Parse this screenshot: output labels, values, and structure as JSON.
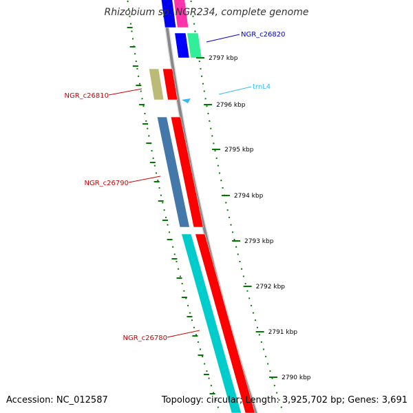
{
  "title": "Rhizobium sp. NGR234, complete genome",
  "footer": {
    "accession": "Accession: NC_012587",
    "summary": "Topology: circular; Length: 3,925,702 bp; Genes: 3,691"
  },
  "tick_labels": [
    "2797 kbp",
    "2796 kbp",
    "2795 kbp",
    "2794 kbp",
    "2793 kbp",
    "2792 kbp",
    "2791 kbp",
    "2790 kbp"
  ],
  "features": [
    {
      "name": "NGR_c26820",
      "color": "#0000cc",
      "kind": "gene",
      "strand": "reverse"
    },
    {
      "name": "trnL4",
      "color": "#33bbee",
      "kind": "tRNA",
      "strand": "forward"
    },
    {
      "name": "NGR_c26810",
      "color": "#cc0000",
      "kind": "gene",
      "strand": "reverse"
    },
    {
      "name": "NGR_c26790",
      "color": "#cc0000",
      "kind": "gene",
      "strand": "reverse"
    },
    {
      "name": "NGR_c26780",
      "color": "#cc0000",
      "kind": "gene",
      "strand": "reverse"
    }
  ],
  "colors": {
    "backbone": "#888888",
    "tick": "#007700",
    "cds_forward": "#ff0000",
    "cds_reverse": "#0000ff",
    "trna": "#33bbee"
  }
}
